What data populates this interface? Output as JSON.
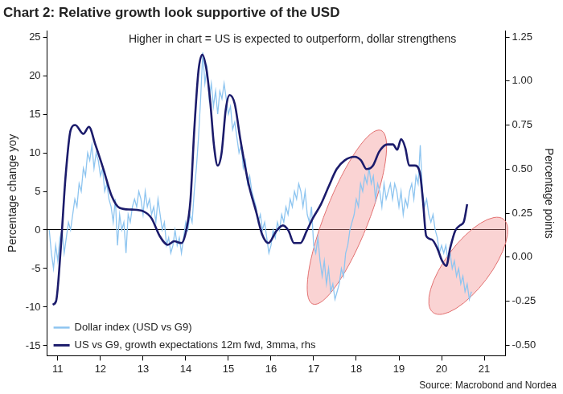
{
  "chart_data": {
    "type": "line",
    "title": "Chart 2: Relative growth look supportive of the USD",
    "annotation": "Higher in chart = US is expected to outperform, dollar strengthens",
    "source": "Source: Macrobond and Nordea",
    "ylabel": "Percentage change yoy",
    "y2label": "Percentage points",
    "grid": false,
    "legend": "lower left",
    "xlim": [
      2010.75,
      2021.5
    ],
    "xticks": [
      {
        "value": 2011,
        "label": "11"
      },
      {
        "value": 2012,
        "label": "12"
      },
      {
        "value": 2013,
        "label": "13"
      },
      {
        "value": 2014,
        "label": "14"
      },
      {
        "value": 2015,
        "label": "15"
      },
      {
        "value": 2016,
        "label": "16"
      },
      {
        "value": 2017,
        "label": "17"
      },
      {
        "value": 2018,
        "label": "18"
      },
      {
        "value": 2019,
        "label": "19"
      },
      {
        "value": 2020,
        "label": "20"
      },
      {
        "value": 2021,
        "label": "21"
      }
    ],
    "ylim": [
      -16.3,
      25.8
    ],
    "yticks": [
      -15,
      -10,
      -5,
      0,
      5,
      10,
      15,
      20,
      25
    ],
    "y2lim": [
      -0.56,
      1.285
    ],
    "y2ticks": [
      {
        "value": -0.5,
        "label": "-0.50"
      },
      -0.25,
      {
        "value": 0,
        "label": "0.00"
      },
      0.25,
      {
        "value": 0.5,
        "label": "0.50"
      },
      0.75,
      {
        "value": 1,
        "label": "1.00"
      },
      1.25
    ],
    "highlights": [
      {
        "xlim": [
          2016.98,
          2018.58
        ],
        "ylim": [
          -9.6,
          12.9
        ]
      },
      {
        "xlim": [
          2019.8,
          2021.45
        ],
        "ylim": [
          -10.7,
          1.4
        ]
      }
    ],
    "series": [
      {
        "name": "Dollar index (USD vs G9)",
        "color": "#8ec5f0",
        "axis": "y",
        "x": [
          2010.8,
          2010.85,
          2010.9,
          2010.95,
          2011,
          2011.05,
          2011.1,
          2011.15,
          2011.2,
          2011.25,
          2011.3,
          2011.35,
          2011.4,
          2011.45,
          2011.5,
          2011.55,
          2011.6,
          2011.65,
          2011.7,
          2011.75,
          2011.8,
          2011.85,
          2011.9,
          2011.95,
          2012,
          2012.05,
          2012.1,
          2012.15,
          2012.2,
          2012.25,
          2012.3,
          2012.35,
          2012.4,
          2012.45,
          2012.5,
          2012.55,
          2012.6,
          2012.65,
          2012.7,
          2012.75,
          2012.8,
          2012.85,
          2012.9,
          2012.95,
          2013,
          2013.05,
          2013.1,
          2013.15,
          2013.2,
          2013.25,
          2013.3,
          2013.35,
          2013.4,
          2013.45,
          2013.5,
          2013.55,
          2013.6,
          2013.65,
          2013.7,
          2013.75,
          2013.8,
          2013.85,
          2013.9,
          2013.95,
          2014,
          2014.05,
          2014.1,
          2014.15,
          2014.2,
          2014.25,
          2014.3,
          2014.35,
          2014.4,
          2014.45,
          2014.5,
          2014.55,
          2014.6,
          2014.65,
          2014.7,
          2014.75,
          2014.8,
          2014.85,
          2014.9,
          2014.95,
          2015,
          2015.05,
          2015.1,
          2015.15,
          2015.2,
          2015.25,
          2015.3,
          2015.35,
          2015.4,
          2015.45,
          2015.5,
          2015.55,
          2015.6,
          2015.65,
          2015.7,
          2015.75,
          2015.8,
          2015.85,
          2015.9,
          2015.95,
          2016,
          2016.05,
          2016.1,
          2016.15,
          2016.2,
          2016.25,
          2016.3,
          2016.35,
          2016.4,
          2016.45,
          2016.5,
          2016.55,
          2016.6,
          2016.65,
          2016.7,
          2016.75,
          2016.8,
          2016.85,
          2016.9,
          2016.95,
          2017,
          2017.05,
          2017.1,
          2017.15,
          2017.2,
          2017.25,
          2017.3,
          2017.35,
          2017.4,
          2017.45,
          2017.5,
          2017.55,
          2017.6,
          2017.65,
          2017.7,
          2017.75,
          2017.8,
          2017.85,
          2017.9,
          2017.95,
          2018,
          2018.05,
          2018.1,
          2018.15,
          2018.2,
          2018.25,
          2018.3,
          2018.35,
          2018.4,
          2018.45,
          2018.5,
          2018.55,
          2018.6,
          2018.65,
          2018.7,
          2018.75,
          2018.8,
          2018.85,
          2018.9,
          2018.95,
          2019,
          2019.05,
          2019.1,
          2019.15,
          2019.2,
          2019.25,
          2019.3,
          2019.35,
          2019.4,
          2019.45,
          2019.5,
          2019.55,
          2019.6,
          2019.65,
          2019.7,
          2019.75,
          2019.8,
          2019.85,
          2019.9,
          2019.95,
          2020,
          2020.05,
          2020.1,
          2020.15,
          2020.2,
          2020.25,
          2020.3,
          2020.35,
          2020.4,
          2020.45,
          2020.5,
          2020.55,
          2020.6,
          2020.65,
          2020.7
        ],
        "values": [
          0,
          -3,
          -5,
          -2,
          -4,
          -1,
          0,
          -3,
          -1,
          1,
          0,
          2,
          4,
          3,
          6,
          5,
          8,
          7,
          10,
          9,
          11,
          8,
          10,
          9,
          7,
          8,
          5,
          6,
          4,
          3,
          1,
          4,
          -2,
          2,
          0,
          1,
          -3,
          2,
          1,
          3,
          4,
          3,
          5,
          4,
          2,
          5,
          3,
          4,
          2,
          3,
          1,
          4,
          2,
          0,
          1,
          -2,
          -1,
          -3,
          -2,
          0,
          -2,
          -1,
          -3,
          -1,
          1,
          0,
          2,
          1,
          5,
          8,
          12,
          17,
          23,
          19,
          21,
          17,
          19,
          16,
          18,
          15,
          18,
          17,
          19,
          17,
          15,
          16,
          13,
          14,
          12,
          10,
          11,
          8,
          9,
          6,
          7,
          5,
          4,
          3,
          1,
          2,
          0,
          1,
          -1,
          -3,
          -2,
          0,
          -1,
          1,
          0,
          2,
          1,
          3,
          2,
          4,
          3,
          5,
          4,
          6,
          5,
          3,
          5,
          2,
          1,
          3,
          -2,
          -3,
          -1,
          -4,
          -6,
          -4,
          -7,
          -5,
          -8,
          -7,
          -9,
          -8,
          -7,
          -5,
          -6,
          -3,
          -2,
          0,
          1,
          2,
          4,
          3,
          6,
          5,
          7,
          6,
          8,
          6,
          7,
          4,
          6,
          5,
          3,
          6,
          4,
          5,
          6,
          4,
          6,
          5,
          3,
          5,
          2,
          4,
          3,
          5,
          6,
          4,
          7,
          6,
          11,
          5,
          3,
          4,
          2,
          1,
          2,
          0,
          -1,
          -3,
          -2,
          -3,
          -2,
          -4,
          -3,
          -5,
          -4,
          -6,
          -5,
          -7,
          -6,
          -8,
          -7,
          -9,
          -8
        ]
      },
      {
        "name": "US vs G9, growth expectations 12m fwd, 3mma, rhs",
        "color": "#1b1b6b",
        "axis": "y2",
        "x": [
          2010.88,
          2010.96,
          2011.07,
          2011.18,
          2011.3,
          2011.41,
          2011.6,
          2011.73,
          2011.88,
          2012.07,
          2012.26,
          2012.45,
          2012.73,
          2013.01,
          2013.2,
          2013.39,
          2013.58,
          2013.73,
          2013.9,
          2014.01,
          2014.11,
          2014.2,
          2014.3,
          2014.39,
          2014.49,
          2014.58,
          2014.66,
          2014.75,
          2014.84,
          2014.94,
          2015.03,
          2015.15,
          2015.28,
          2015.47,
          2015.66,
          2015.79,
          2015.94,
          2016.13,
          2016.28,
          2016.41,
          2016.54,
          2016.69,
          2016.84,
          2016.98,
          2017.17,
          2017.35,
          2017.54,
          2017.73,
          2017.96,
          2018.11,
          2018.24,
          2018.39,
          2018.54,
          2018.73,
          2018.86,
          2018.96,
          2019.05,
          2019.15,
          2019.24,
          2019.37,
          2019.49,
          2019.56,
          2019.64,
          2019.77,
          2019.9,
          2020.01,
          2020.11,
          2020.2,
          2020.32,
          2020.43,
          2020.52,
          2020.6
        ],
        "values": [
          -0.27,
          -0.25,
          0.05,
          0.45,
          0.72,
          0.75,
          0.7,
          0.74,
          0.64,
          0.5,
          0.35,
          0.28,
          0.27,
          0.26,
          0.22,
          0.12,
          0.07,
          0.09,
          0.08,
          0.15,
          0.32,
          0.72,
          1.06,
          1.15,
          1.06,
          0.87,
          0.64,
          0.52,
          0.59,
          0.84,
          0.92,
          0.87,
          0.67,
          0.42,
          0.25,
          0.13,
          0.08,
          0.15,
          0.18,
          0.15,
          0.08,
          0.08,
          0.15,
          0.22,
          0.3,
          0.4,
          0.5,
          0.55,
          0.57,
          0.55,
          0.5,
          0.52,
          0.6,
          0.64,
          0.64,
          0.61,
          0.67,
          0.62,
          0.52,
          0.52,
          0.48,
          0.33,
          0.12,
          0.1,
          0.05,
          -0.02,
          -0.05,
          0.05,
          0.15,
          0.18,
          0.2,
          0.3
        ]
      }
    ]
  }
}
